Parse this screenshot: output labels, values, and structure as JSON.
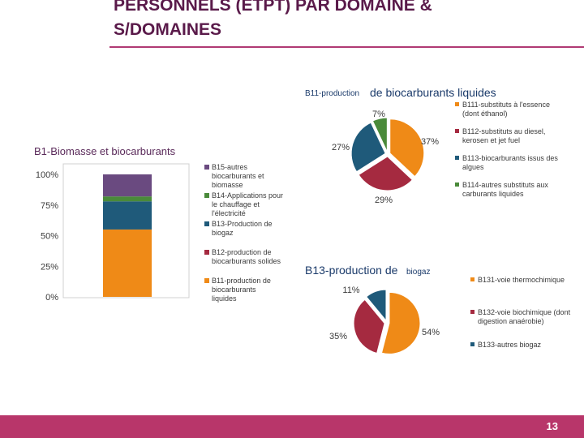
{
  "slide": {
    "title_line1": "PERSONNELS (ETPT) PAR DOMAINE &",
    "title_line2": "S/DOMAINES",
    "page_number": "13",
    "accent_color": "#b8366a"
  },
  "chart_data": [
    {
      "type": "bar",
      "stacked": "percent",
      "title": "B1-Biomasse et biocarburants",
      "categories": [
        ""
      ],
      "y_ticks": [
        "0%",
        "25%",
        "50%",
        "75%",
        "100%"
      ],
      "ylim": [
        0,
        100
      ],
      "legend_position": "right",
      "series": [
        {
          "name": "B11-production de biocarburants liquides",
          "values": [
            55
          ],
          "color": "#ef8a17"
        },
        {
          "name": "B12-production de biocarburants solides",
          "values": [
            0
          ],
          "color": "#a52a40"
        },
        {
          "name": "B13-Production de biogaz",
          "values": [
            23
          ],
          "color": "#1f5a7a"
        },
        {
          "name": "B14-Applications pour le chauffage et l'électricité",
          "values": [
            4
          ],
          "color": "#4a8a3a"
        },
        {
          "name": "B15-autres biocarburants et biomasse",
          "values": [
            18
          ],
          "color": "#6a4a80"
        }
      ],
      "legend_order": [
        4,
        3,
        2,
        1,
        0
      ]
    },
    {
      "type": "pie",
      "title_part1": "B11-production",
      "title_part2": "de biocarburants liquides",
      "legend_position": "right",
      "slices": [
        {
          "name": "B111-substituts à l'essence (dont éthanol)",
          "value": 37,
          "label": "37%",
          "color": "#ef8a17"
        },
        {
          "name": "B112-substituts au diesel, kerosen et jet fuel",
          "value": 29,
          "label": "29%",
          "color": "#a52a40"
        },
        {
          "name": "B113-biocarburants issus des algues",
          "value": 27,
          "label": "27%",
          "color": "#1f5a7a"
        },
        {
          "name": "B114-autres substituts aux carburants liquides",
          "value": 7,
          "label": "7%",
          "color": "#4a8a3a"
        }
      ]
    },
    {
      "type": "pie",
      "title_part1": "B13-production de",
      "title_part2": "biogaz",
      "legend_position": "right",
      "slices": [
        {
          "name": "B131-voie thermochimique",
          "value": 54,
          "label": "54%",
          "color": "#ef8a17"
        },
        {
          "name": "B132-voie biochimique (dont digestion anaérobie)",
          "value": 35,
          "label": "35%",
          "color": "#a52a40"
        },
        {
          "name": "B133-autres biogaz",
          "value": 11,
          "label": "11%",
          "color": "#1f5a7a"
        }
      ]
    }
  ]
}
